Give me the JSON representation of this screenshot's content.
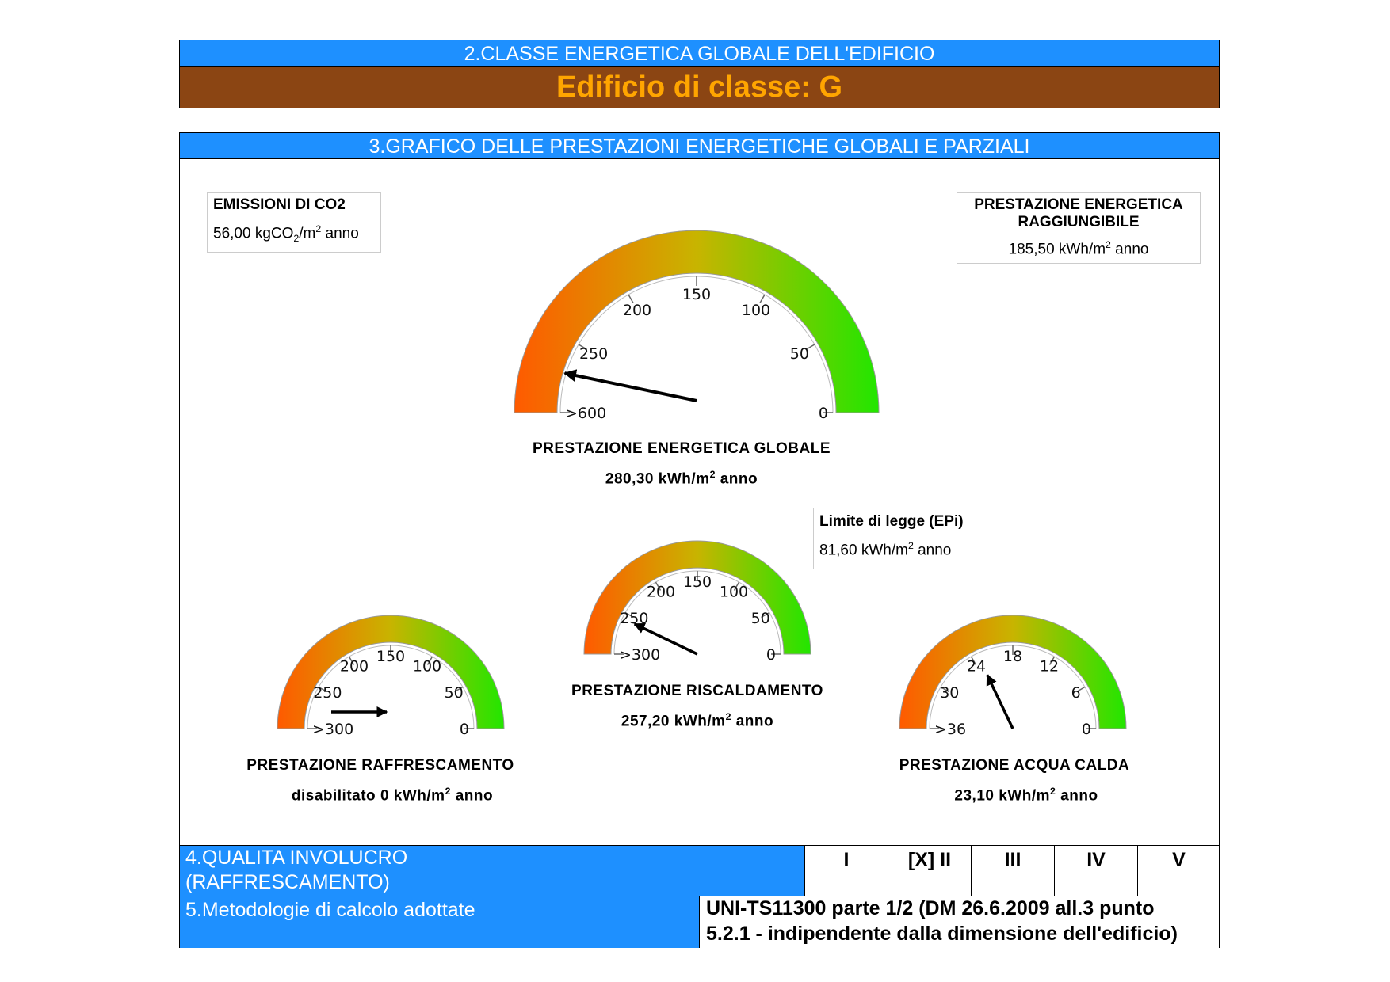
{
  "section2": {
    "title": "2.CLASSE ENERGETICA GLOBALE DELL'EDIFICIO",
    "class_text": "Edificio di classe: G"
  },
  "section3": {
    "title": "3.GRAFICO DELLE PRESTAZIONI ENERGETICHE GLOBALI E PARZIALI"
  },
  "emissions": {
    "title": "EMISSIONI DI CO2",
    "value": "56,00",
    "unit_a": "kgCO",
    "unit_sub": "2",
    "unit_b": "/m",
    "unit_sup": "2",
    "unit_c": " anno"
  },
  "achievable": {
    "title_line1": "PRESTAZIONE ENERGETICA",
    "title_line2": "RAGGIUNGIBILE",
    "value": "185,50 kWh/m",
    "unit_sup": "2",
    "unit_c": " anno"
  },
  "legal_limit": {
    "title": "Limite di legge (EPi)",
    "value": "81,60 kWh/m",
    "unit_sup": "2",
    "unit_c": " anno"
  },
  "gauges": {
    "global": {
      "label": "PRESTAZIONE ENERGETICA GLOBALE",
      "value_text": "280,30 kWh/m",
      "unit_sup": "2",
      "unit_c": " anno",
      "ticks": [
        ">600",
        "250",
        "200",
        "150",
        "100",
        "50",
        "0"
      ],
      "pointer_value": 280.3
    },
    "heating": {
      "label": "PRESTAZIONE RISCALDAMENTO",
      "value_text": "257,20 kWh/m",
      "unit_sup": "2",
      "unit_c": " anno",
      "ticks": [
        ">300",
        "250",
        "200",
        "150",
        "100",
        "50",
        "0"
      ],
      "pointer_value": 257.2
    },
    "cooling": {
      "label": "PRESTAZIONE RAFFRESCAMENTO",
      "value_text": "disabilitato 0 kWh/m",
      "unit_sup": "2",
      "unit_c": " anno",
      "ticks": [
        ">300",
        "250",
        "200",
        "150",
        "100",
        "50",
        "0"
      ],
      "pointer_value": 0
    },
    "hot_water": {
      "label": "PRESTAZIONE ACQUA CALDA",
      "value_text": "23,10 kWh/m",
      "unit_sup": "2",
      "unit_c": " anno",
      "ticks": [
        ">36",
        "30",
        "24",
        "18",
        "12",
        "6",
        "0"
      ],
      "pointer_value": 23.1
    }
  },
  "section4": {
    "label_line1": "4.QUALITA INVOLUCRO",
    "label_line2": "(RAFFRESCAMENTO)",
    "classes": [
      "I",
      "[X] II",
      "III",
      "IV",
      "V"
    ]
  },
  "section5": {
    "label": "5.Metodologie di calcolo adottate",
    "value_line1": "UNI-TS11300 parte 1/2 (DM 26.6.2009 all.3 punto",
    "value_line2": "5.2.1 - indipendente dalla dimensione dell'edificio)"
  },
  "colors": {
    "header_blue": "#1e90ff",
    "class_bar": "#8b4513",
    "class_text": "#ffa500",
    "gauge_low": "#ff5a00",
    "gauge_mid": "#c8b400",
    "gauge_high": "#22e600"
  }
}
